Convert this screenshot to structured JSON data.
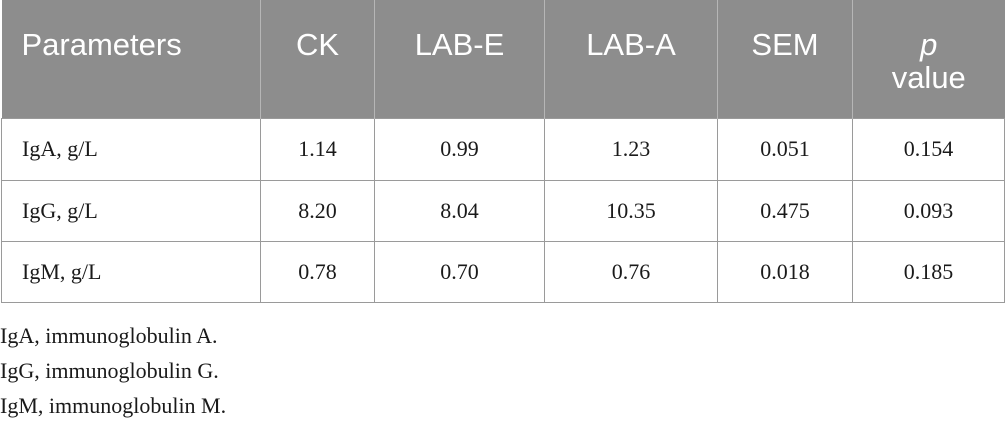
{
  "table": {
    "headers": {
      "parameters": "Parameters",
      "ck": "CK",
      "lab_e": "LAB-E",
      "lab_a": "LAB-A",
      "sem": "SEM",
      "p_symbol": "p",
      "p_value_word": "value"
    },
    "rows": [
      {
        "parameter": "IgA, g/L",
        "ck": "1.14",
        "lab_e": "0.99",
        "lab_a": "1.23",
        "sem": "0.051",
        "p_value": "0.154"
      },
      {
        "parameter": "IgG, g/L",
        "ck": "8.20",
        "lab_e": "8.04",
        "lab_a": "10.35",
        "sem": "0.475",
        "p_value": "0.093"
      },
      {
        "parameter": "IgM, g/L",
        "ck": "0.78",
        "lab_e": "0.70",
        "lab_a": "0.76",
        "sem": "0.018",
        "p_value": "0.185"
      }
    ]
  },
  "footnotes": [
    "IgA, immunoglobulin A.",
    "IgG, immunoglobulin G.",
    "IgM, immunoglobulin M."
  ],
  "colors": {
    "header_background": "#8d8d8d",
    "header_text": "#ffffff",
    "border": "#9a9a9a"
  }
}
